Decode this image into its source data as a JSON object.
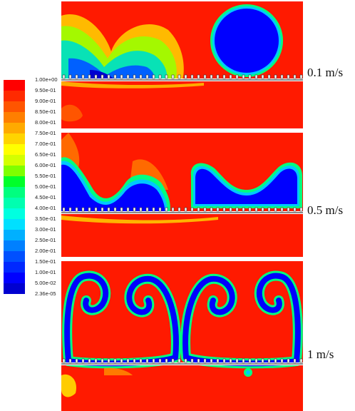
{
  "colorbar": {
    "labels": [
      "1.00e+00",
      "9.50e-01",
      "9.00e-01",
      "8.50e-01",
      "8.00e-01",
      "7.50e-01",
      "7.00e-01",
      "6.50e-01",
      "6.00e-01",
      "5.50e-01",
      "5.00e-01",
      "4.50e-01",
      "4.00e-01",
      "3.50e-01",
      "3.00e-01",
      "2.50e-01",
      "2.00e-01",
      "1.50e-01",
      "1.00e-01",
      "5.00e-02",
      "2.36e-05"
    ],
    "colors": [
      "#ff0000",
      "#ff2a00",
      "#ff5500",
      "#ff7f00",
      "#ffaa00",
      "#ffd400",
      "#ffff00",
      "#d4ff00",
      "#7fff00",
      "#00ff2a",
      "#00ff7f",
      "#00ffb0",
      "#00ffe0",
      "#00e0ff",
      "#00b0ff",
      "#0080ff",
      "#0050ff",
      "#0028ff",
      "#0000ff",
      "#0000d0"
    ]
  },
  "panels": [
    {
      "speed_label": "0.1 m/s"
    },
    {
      "speed_label": "0.5 m/s"
    },
    {
      "speed_label": "1 m/s"
    }
  ],
  "colors": {
    "liquid": "#ff1a00",
    "gas": "#0000ff",
    "interface_outer": "#00ff80",
    "interface_inner": "#00c8ff",
    "background": "#ffffff"
  }
}
